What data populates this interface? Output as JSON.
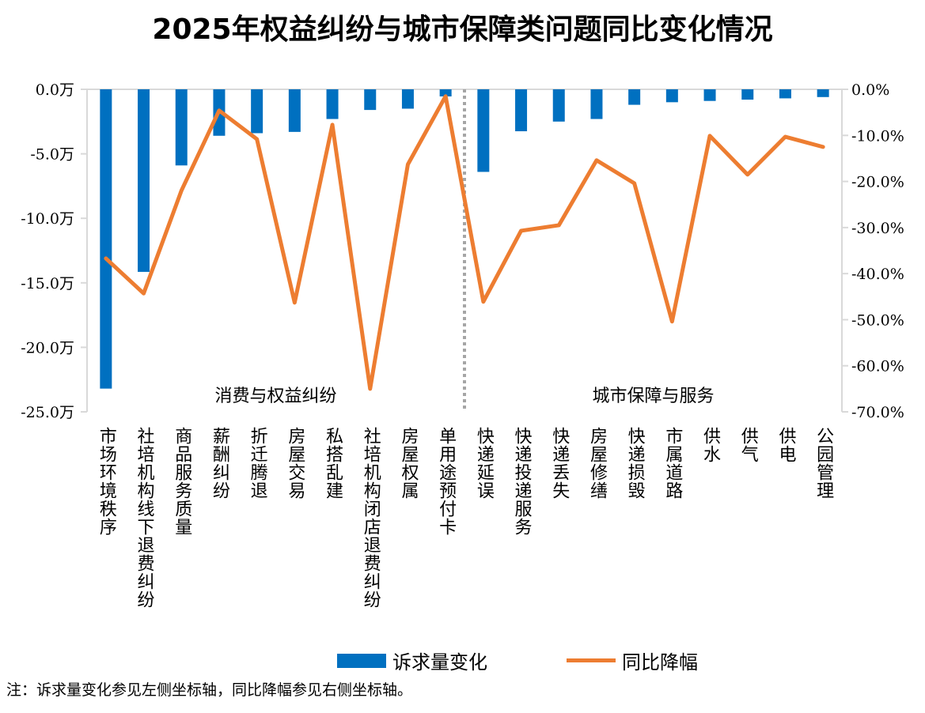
{
  "title": "2025年权益纠纷与城市保障类问题同比变化情况",
  "note": "注：诉求量变化参见左侧坐标轴，同比降幅参见右侧坐标轴。",
  "chart_data": {
    "type": "bar+line",
    "title": "2025年权益纠纷与城市保障类问题同比变化情况",
    "categories": [
      "市场环境秩序",
      "社培机构线下退费纠纷",
      "商品服务质量",
      "薪酬纠纷",
      "折迁腾退",
      "房屋交易",
      "私搭乱建",
      "社培机构闭店退费纠纷",
      "房屋权属",
      "单用途预付卡",
      "快递延误",
      "快递投递服务",
      "快递丢失",
      "房屋修缮",
      "快递损毁",
      "市属道路",
      "供水",
      "供气",
      "供电",
      "公园管理"
    ],
    "groups": [
      {
        "label": "消费与权益纠纷",
        "range": [
          0,
          9
        ]
      },
      {
        "label": "城市保障与服务",
        "range": [
          10,
          19
        ]
      }
    ],
    "series": [
      {
        "name": "诉求量变化",
        "type": "bar",
        "axis": "left",
        "color": "#0070C0",
        "values": [
          -23.2,
          -14.15,
          -5.9,
          -3.6,
          -3.4,
          -3.3,
          -2.3,
          -1.6,
          -1.5,
          -0.55,
          -6.4,
          -3.25,
          -2.5,
          -2.3,
          -1.2,
          -1.0,
          -0.9,
          -0.8,
          -0.7,
          -0.6
        ]
      },
      {
        "name": "同比降幅",
        "type": "line",
        "axis": "right",
        "color": "#ED7D31",
        "values": [
          -36.7,
          -44.3,
          -22.0,
          -4.6,
          -10.8,
          -46.3,
          -7.7,
          -65.0,
          -16.3,
          -1.5,
          -46.1,
          -30.7,
          -29.5,
          -15.4,
          -20.4,
          -50.4,
          -10.1,
          -18.5,
          -10.3,
          -12.5
        ]
      }
    ],
    "left_axis": {
      "ylim": [
        -25,
        0
      ],
      "ticks": [
        "0.0万",
        "-5.0万",
        "-10.0万",
        "-15.0万",
        "-20.0万",
        "-25.0万"
      ]
    },
    "right_axis": {
      "ylim": [
        -70,
        0
      ],
      "ticks": [
        "0.0%",
        "-10.0%",
        "-20.0%",
        "-30.0%",
        "-40.0%",
        "-50.0%",
        "-60.0%",
        "-70.0%"
      ]
    },
    "legend_position": "bottom",
    "grid": false
  }
}
